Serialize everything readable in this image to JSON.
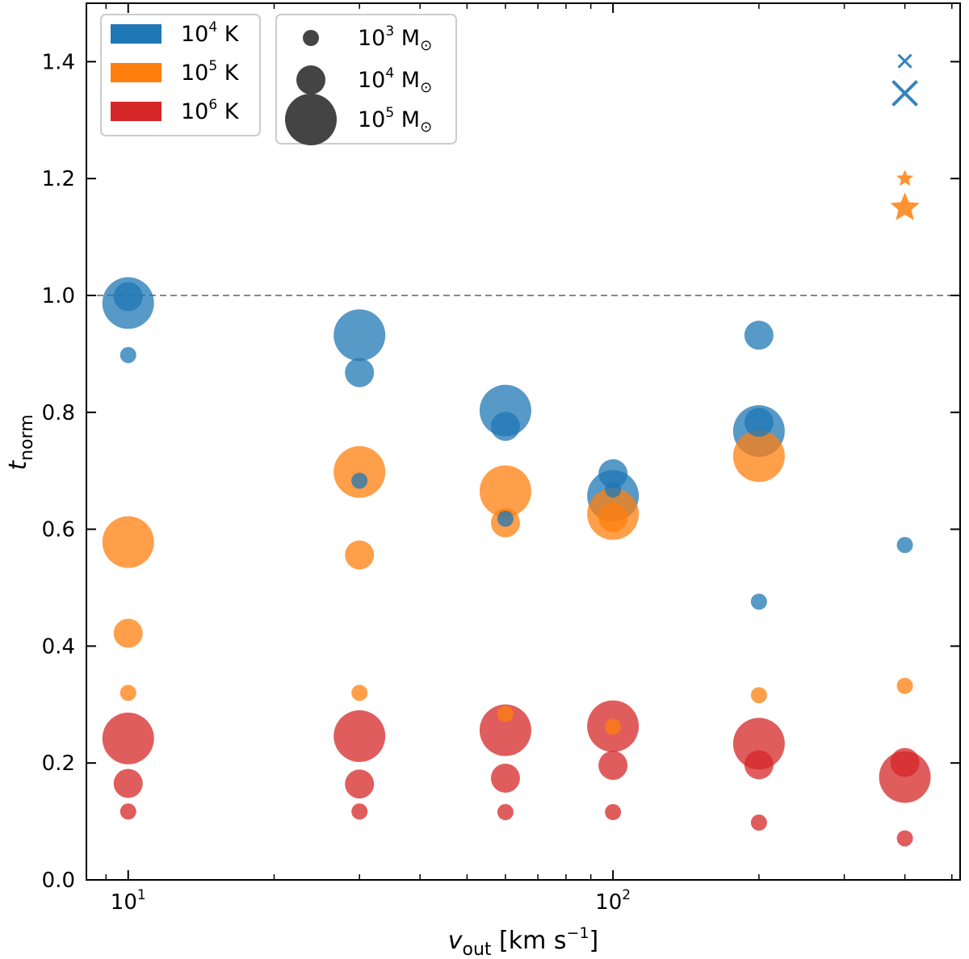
{
  "chart_data": {
    "type": "scatter",
    "xscale": "log",
    "xlim": [
      8.2,
      520
    ],
    "ylim": [
      0.0,
      1.5
    ],
    "xlabel": "v",
    "xlabel_sub": "out",
    "xlabel_units": "[km s",
    "xlabel_units_sup": "−1",
    "xlabel_units_close": "]",
    "ylabel": "t",
    "ylabel_sub": "norm",
    "x_ticks": [
      {
        "value": 10,
        "base": "10",
        "exp": "1"
      },
      {
        "value": 100,
        "base": "10",
        "exp": "2"
      }
    ],
    "x_minor_ticks": [
      9,
      20,
      30,
      40,
      50,
      60,
      70,
      80,
      90,
      200,
      300,
      400,
      500
    ],
    "y_ticks": [
      {
        "value": 0.0,
        "label": "0.0"
      },
      {
        "value": 0.2,
        "label": "0.2"
      },
      {
        "value": 0.4,
        "label": "0.4"
      },
      {
        "value": 0.6,
        "label": "0.6"
      },
      {
        "value": 0.8,
        "label": "0.8"
      },
      {
        "value": 1.0,
        "label": "1.0"
      },
      {
        "value": 1.2,
        "label": "1.2"
      },
      {
        "value": 1.4,
        "label": "1.4"
      }
    ],
    "reference_line": {
      "y": 1.0,
      "style": "dashed",
      "color": "#888888"
    },
    "legend_temperature": [
      {
        "label_base": "10",
        "label_exp": "4",
        "label_unit": "K",
        "color": "#1f77b4"
      },
      {
        "label_base": "10",
        "label_exp": "5",
        "label_unit": "K",
        "color": "#ff7f0e"
      },
      {
        "label_base": "10",
        "label_exp": "6",
        "label_unit": "K",
        "color": "#d62728"
      }
    ],
    "legend_mass": [
      {
        "label_base": "10",
        "label_exp": "3",
        "label_unit": "M",
        "label_sub": "⊙",
        "mass": 1000
      },
      {
        "label_base": "10",
        "label_exp": "4",
        "label_unit": "M",
        "label_sub": "⊙",
        "mass": 10000
      },
      {
        "label_base": "10",
        "label_exp": "5",
        "label_unit": "M",
        "label_sub": "⊙",
        "mass": 100000
      }
    ],
    "marker_color": "#444444",
    "series": [
      {
        "name": "10^4 K",
        "color": "#1f77b4",
        "points": [
          {
            "x": 10,
            "y": 0.898,
            "mass": 1000
          },
          {
            "x": 10,
            "y": 0.998,
            "mass": 10000
          },
          {
            "x": 10,
            "y": 0.987,
            "mass": 100000
          },
          {
            "x": 30,
            "y": 0.683,
            "mass": 1000
          },
          {
            "x": 30,
            "y": 0.868,
            "mass": 10000
          },
          {
            "x": 30,
            "y": 0.932,
            "mass": 100000
          },
          {
            "x": 60,
            "y": 0.618,
            "mass": 1000
          },
          {
            "x": 60,
            "y": 0.776,
            "mass": 10000
          },
          {
            "x": 60,
            "y": 0.803,
            "mass": 100000
          },
          {
            "x": 100,
            "y": 0.668,
            "mass": 1000
          },
          {
            "x": 100,
            "y": 0.695,
            "mass": 10000
          },
          {
            "x": 100,
            "y": 0.657,
            "mass": 100000
          },
          {
            "x": 200,
            "y": 0.476,
            "mass": 1000
          },
          {
            "x": 200,
            "y": 0.932,
            "mass": 10000
          },
          {
            "x": 200,
            "y": 0.783,
            "mass": 10000
          },
          {
            "x": 200,
            "y": 0.768,
            "mass": 100000
          },
          {
            "x": 400,
            "y": 0.573,
            "mass": 1000
          }
        ]
      },
      {
        "name": "10^5 K",
        "color": "#ff7f0e",
        "points": [
          {
            "x": 10,
            "y": 0.32,
            "mass": 1000
          },
          {
            "x": 10,
            "y": 0.422,
            "mass": 10000
          },
          {
            "x": 10,
            "y": 0.578,
            "mass": 100000
          },
          {
            "x": 30,
            "y": 0.32,
            "mass": 1000
          },
          {
            "x": 30,
            "y": 0.556,
            "mass": 10000
          },
          {
            "x": 30,
            "y": 0.698,
            "mass": 100000
          },
          {
            "x": 60,
            "y": 0.284,
            "mass": 1000
          },
          {
            "x": 60,
            "y": 0.611,
            "mass": 10000
          },
          {
            "x": 60,
            "y": 0.665,
            "mass": 100000
          },
          {
            "x": 100,
            "y": 0.262,
            "mass": 1000
          },
          {
            "x": 100,
            "y": 0.62,
            "mass": 10000
          },
          {
            "x": 100,
            "y": 0.626,
            "mass": 100000
          },
          {
            "x": 200,
            "y": 0.316,
            "mass": 1000
          },
          {
            "x": 200,
            "y": 0.725,
            "mass": 100000
          },
          {
            "x": 400,
            "y": 0.332,
            "mass": 1000
          }
        ]
      },
      {
        "name": "10^6 K",
        "color": "#d62728",
        "points": [
          {
            "x": 10,
            "y": 0.117,
            "mass": 1000
          },
          {
            "x": 10,
            "y": 0.165,
            "mass": 10000
          },
          {
            "x": 10,
            "y": 0.242,
            "mass": 100000
          },
          {
            "x": 30,
            "y": 0.117,
            "mass": 1000
          },
          {
            "x": 30,
            "y": 0.164,
            "mass": 10000
          },
          {
            "x": 30,
            "y": 0.246,
            "mass": 100000
          },
          {
            "x": 60,
            "y": 0.116,
            "mass": 1000
          },
          {
            "x": 60,
            "y": 0.174,
            "mass": 10000
          },
          {
            "x": 60,
            "y": 0.256,
            "mass": 100000
          },
          {
            "x": 100,
            "y": 0.116,
            "mass": 1000
          },
          {
            "x": 100,
            "y": 0.196,
            "mass": 10000
          },
          {
            "x": 100,
            "y": 0.263,
            "mass": 100000
          },
          {
            "x": 200,
            "y": 0.098,
            "mass": 1000
          },
          {
            "x": 200,
            "y": 0.197,
            "mass": 10000
          },
          {
            "x": 200,
            "y": 0.233,
            "mass": 100000
          },
          {
            "x": 400,
            "y": 0.071,
            "mass": 1000
          },
          {
            "x": 400,
            "y": 0.201,
            "mass": 10000
          },
          {
            "x": 400,
            "y": 0.176,
            "mass": 100000
          }
        ]
      }
    ],
    "special_markers": [
      {
        "type": "x",
        "x": 400,
        "y": 1.401,
        "mass": 1000,
        "color": "#1f77b4"
      },
      {
        "type": "x",
        "x": 400,
        "y": 1.346,
        "mass": 10000,
        "color": "#1f77b4"
      },
      {
        "type": "star",
        "x": 400,
        "y": 1.2,
        "mass": 1000,
        "color": "#ff7f0e"
      },
      {
        "type": "star",
        "x": 400,
        "y": 1.15,
        "mass": 10000,
        "color": "#ff7f0e"
      }
    ]
  }
}
